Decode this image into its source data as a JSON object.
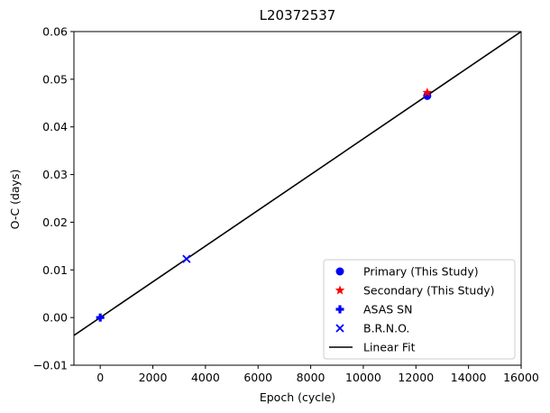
{
  "chart_data": {
    "type": "scatter",
    "title": "L20372537",
    "xlabel": "Epoch (cycle)",
    "ylabel": "O-C (days)",
    "xlim": [
      -1000,
      16000
    ],
    "ylim": [
      -0.01,
      0.06
    ],
    "xticks": [
      0,
      2000,
      4000,
      6000,
      8000,
      10000,
      12000,
      14000,
      16000
    ],
    "yticks": [
      -0.01,
      0.0,
      0.01,
      0.02,
      0.03,
      0.04,
      0.05,
      0.06
    ],
    "xtick_labels": [
      "0",
      "2000",
      "4000",
      "6000",
      "8000",
      "10000",
      "12000",
      "14000",
      "16000"
    ],
    "ytick_labels": [
      "−0.01",
      "0.00",
      "0.01",
      "0.02",
      "0.03",
      "0.04",
      "0.05",
      "0.06"
    ],
    "grid": false,
    "legend_position": "lower-right",
    "series": [
      {
        "name": "Primary (This Study)",
        "marker": "circle",
        "color": "#0000ff",
        "points": [
          {
            "x": 12430,
            "y": 0.0465
          }
        ]
      },
      {
        "name": "Secondary (This Study)",
        "marker": "star",
        "color": "#ff0000",
        "points": [
          {
            "x": 12430,
            "y": 0.0472
          }
        ]
      },
      {
        "name": "ASAS SN",
        "marker": "plus",
        "color": "#0000ff",
        "points": [
          {
            "x": 0,
            "y": 0.0
          }
        ]
      },
      {
        "name": "B.R.N.O.",
        "marker": "x",
        "color": "#0000ff",
        "points": [
          {
            "x": 3280,
            "y": 0.0123
          }
        ]
      }
    ],
    "fit": {
      "name": "Linear Fit",
      "color": "#000000",
      "slope": 3.75e-06,
      "intercept": 0.0
    }
  }
}
